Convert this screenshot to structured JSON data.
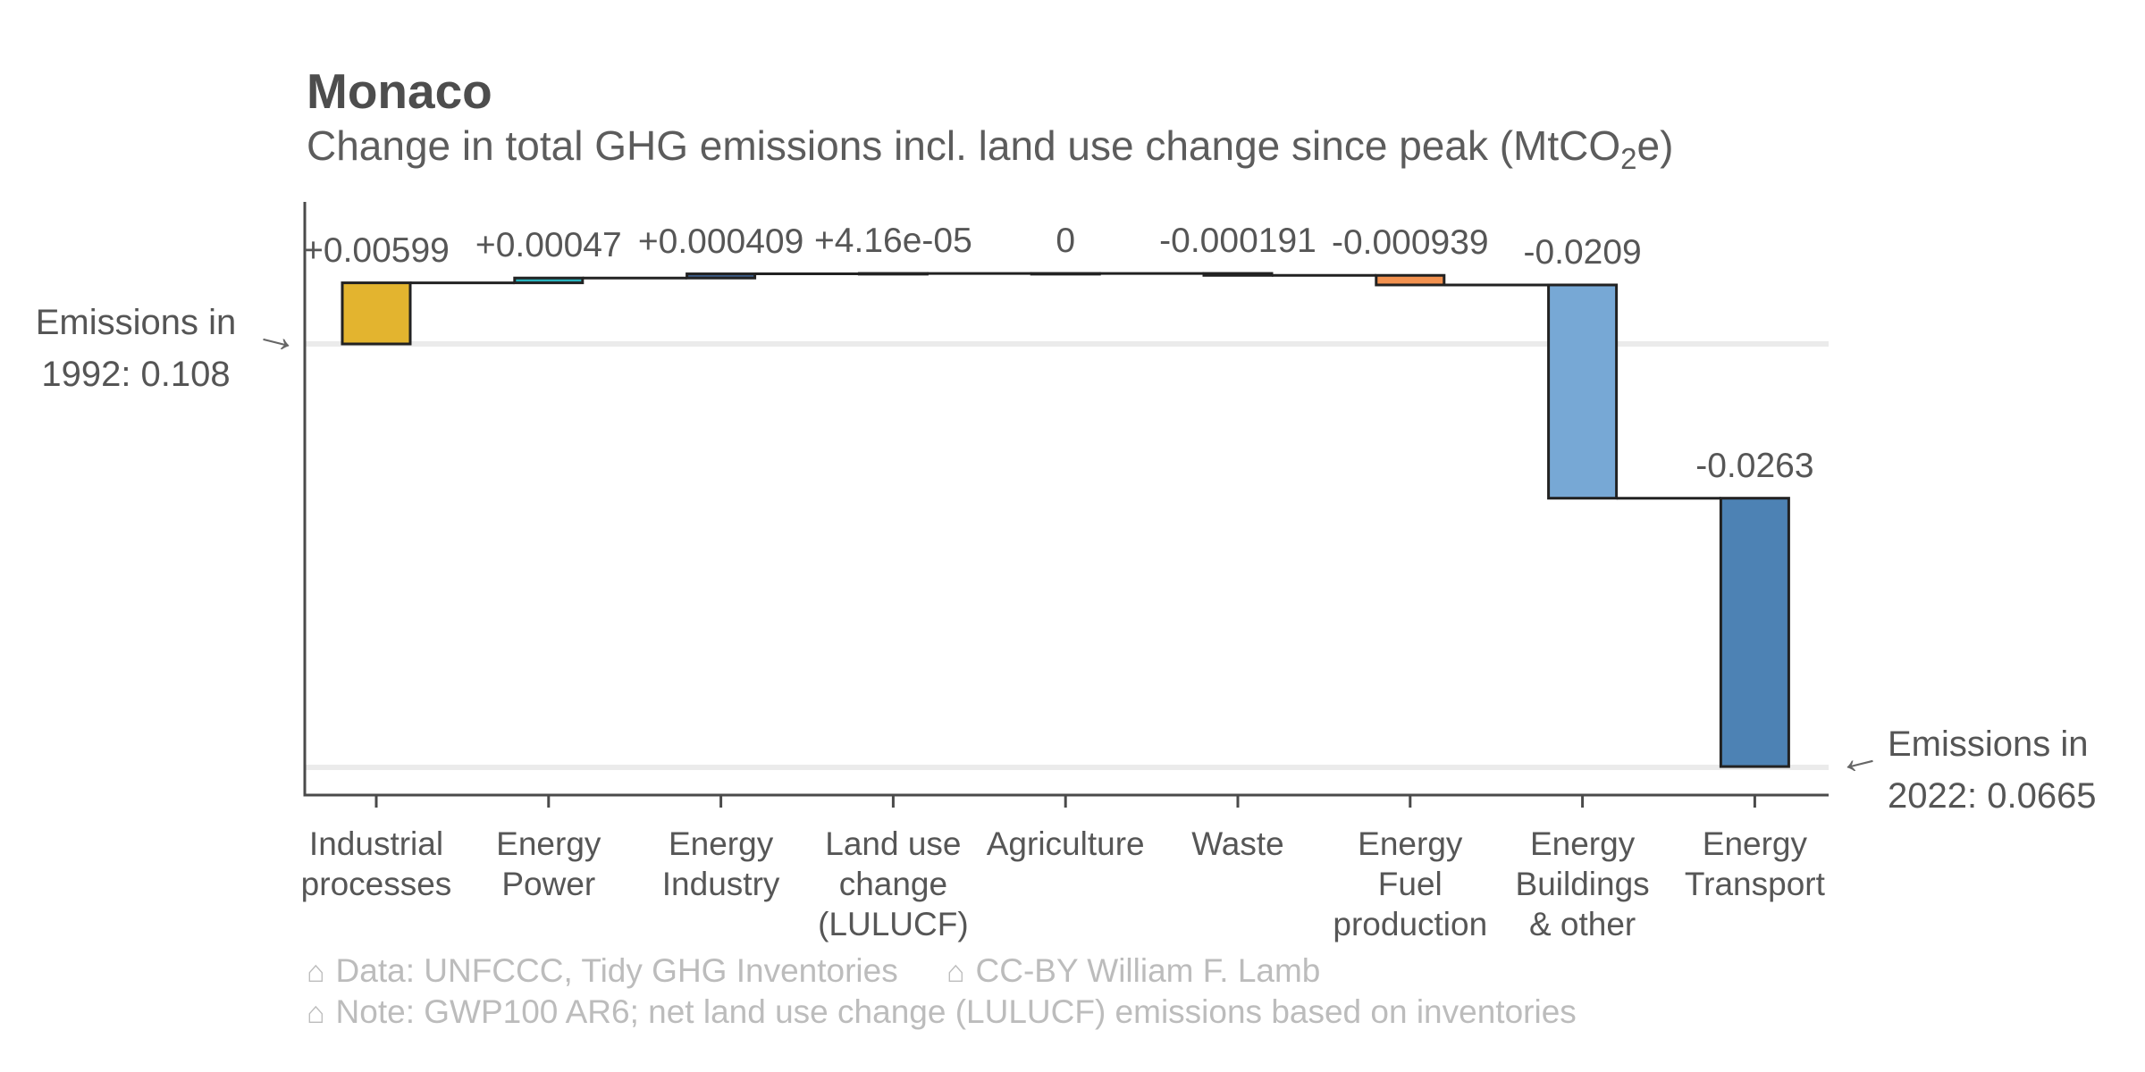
{
  "chart_data": {
    "type": "bar",
    "subtype": "waterfall",
    "title": "Monaco",
    "subtitle_parts": {
      "prefix": "Change in total GHG emissions incl. land use change since peak (MtCO",
      "subscript": "2",
      "suffix": "e)"
    },
    "units": "MtCO2e",
    "categories": [
      [
        "Industrial",
        "processes"
      ],
      [
        "Energy",
        "Power"
      ],
      [
        "Energy",
        "Industry"
      ],
      [
        "Land use",
        "change",
        "(LULUCF)"
      ],
      [
        "Agriculture"
      ],
      [
        "Waste"
      ],
      [
        "Energy",
        "Fuel",
        "production"
      ],
      [
        "Energy",
        "Buildings",
        "& other"
      ],
      [
        "Energy",
        "Transport"
      ]
    ],
    "values": [
      0.00599,
      0.00047,
      0.000409,
      4.16e-05,
      0,
      -0.000191,
      -0.000939,
      -0.0209,
      -0.0263
    ],
    "value_labels": [
      "+0.00599",
      "+0.00047",
      "+0.000409",
      "+4.16e-05",
      "0",
      "-0.000191",
      "-0.000939",
      "-0.0209",
      "-0.0263"
    ],
    "bar_colors": [
      "#e3b42f",
      "#29b2bc",
      "#3e5f8e",
      "#555555",
      "#555555",
      "#555555",
      "#f2914f",
      "#77a8d5",
      "#4d82b4"
    ],
    "bar_stroke": "#222222",
    "start": {
      "year": 1992,
      "value": 0.108,
      "label_line1": "Emissions in",
      "label_line2": "1992: 0.108"
    },
    "end": {
      "year": 2022,
      "value": 0.0665,
      "label_line1": "Emissions in",
      "label_line2": "2022: 0.0665"
    },
    "axis_color": "#4a4a4a",
    "gridline_color": "#ebebeb",
    "text_color": "#565656",
    "y_axis": {
      "ticks_visible": false
    },
    "legend": {
      "visible": false
    }
  },
  "icons": {
    "arrow_right": "→",
    "arrow_left": "←",
    "house": "⌂"
  },
  "footer": {
    "line1": [
      {
        "text": "Data: UNFCCC, Tidy GHG Inventories"
      },
      {
        "text": "CC-BY William F. Lamb"
      }
    ],
    "line2": [
      {
        "text": "Note: GWP100 AR6; net land use change (LULUCF) emissions based on inventories"
      }
    ]
  }
}
